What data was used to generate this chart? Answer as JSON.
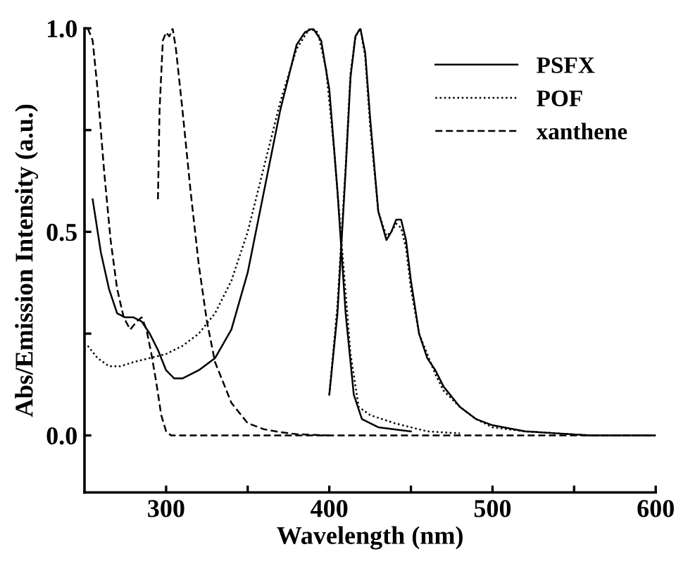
{
  "chart_data": {
    "type": "line",
    "xlabel": "Wavelength (nm)",
    "ylabel": "Abs/Emission Intensity (a.u.)",
    "xlim": [
      250,
      600
    ],
    "ylim": [
      -0.14,
      1.0
    ],
    "xticks": [
      300,
      {
        "value": 350,
        "label": null
      },
      400,
      {
        "value": 450,
        "label": null
      },
      500,
      {
        "value": 550,
        "label": null
      },
      600
    ],
    "yticks": [
      {
        "value": 0,
        "label": "0.0"
      },
      {
        "value": 0.25,
        "label": null
      },
      0.5,
      {
        "value": 0.75,
        "label": null
      },
      {
        "value": 1,
        "label": "1.0"
      }
    ],
    "grid": false,
    "legend": "top right",
    "marker": "none",
    "series": [
      {
        "name": "PSFX",
        "color": "#000000",
        "line_style": "solid",
        "x": [
          255,
          260,
          265,
          270,
          275,
          280,
          285,
          290,
          295,
          300,
          305,
          310,
          320,
          330,
          340,
          350,
          360,
          370,
          380,
          385,
          390,
          395,
          400,
          405,
          410,
          415,
          420,
          430,
          450
        ],
        "values": [
          0.58,
          0.45,
          0.36,
          0.3,
          0.29,
          0.29,
          0.28,
          0.25,
          0.21,
          0.16,
          0.14,
          0.14,
          0.16,
          0.19,
          0.26,
          0.4,
          0.6,
          0.8,
          0.96,
          0.99,
          1.0,
          0.97,
          0.85,
          0.6,
          0.3,
          0.1,
          0.04,
          0.02,
          0.01
        ]
      },
      {
        "color": "#000000",
        "line_style": "solid",
        "x": [
          400,
          405,
          410,
          413,
          416,
          419,
          422,
          425,
          430,
          435,
          438,
          441,
          444,
          447,
          450,
          455,
          460,
          465,
          470,
          480,
          490,
          500,
          520,
          540,
          560,
          600
        ],
        "values": [
          0.1,
          0.3,
          0.65,
          0.88,
          0.98,
          1.0,
          0.94,
          0.78,
          0.55,
          0.48,
          0.5,
          0.53,
          0.53,
          0.48,
          0.38,
          0.25,
          0.19,
          0.16,
          0.12,
          0.07,
          0.04,
          0.025,
          0.01,
          0.005,
          0.0,
          0.0
        ]
      },
      {
        "name": "POF",
        "color": "#000000",
        "line_style": "dotted",
        "x": [
          252,
          258,
          265,
          272,
          280,
          290,
          300,
          310,
          320,
          330,
          340,
          350,
          360,
          370,
          380,
          388,
          393,
          398,
          403,
          408,
          413,
          418,
          425,
          440,
          460,
          480
        ],
        "values": [
          0.22,
          0.19,
          0.17,
          0.17,
          0.18,
          0.19,
          0.2,
          0.22,
          0.25,
          0.3,
          0.38,
          0.5,
          0.66,
          0.82,
          0.95,
          1.0,
          0.99,
          0.9,
          0.7,
          0.45,
          0.2,
          0.07,
          0.05,
          0.03,
          0.01,
          0.005
        ]
      },
      {
        "color": "#000000",
        "line_style": "dotted",
        "x": [
          400,
          405,
          410,
          413,
          416,
          419,
          422,
          425,
          430,
          435,
          438,
          441,
          444,
          447,
          450,
          455,
          460,
          465,
          470,
          480,
          490,
          500,
          520,
          540,
          560,
          600
        ],
        "values": [
          0.1,
          0.32,
          0.66,
          0.89,
          0.98,
          1.0,
          0.93,
          0.76,
          0.55,
          0.49,
          0.5,
          0.52,
          0.51,
          0.46,
          0.36,
          0.25,
          0.2,
          0.15,
          0.11,
          0.07,
          0.04,
          0.02,
          0.01,
          0.005,
          0.0,
          0.0
        ]
      },
      {
        "name": "xanthene",
        "color": "#000000",
        "line_style": "dashed",
        "x": [
          252,
          255,
          258,
          262,
          266,
          270,
          274,
          278,
          282,
          285,
          288,
          291,
          294,
          297,
          300,
          303,
          310,
          330,
          400,
          500,
          600
        ],
        "values": [
          1.0,
          0.97,
          0.85,
          0.65,
          0.48,
          0.36,
          0.29,
          0.26,
          0.28,
          0.29,
          0.26,
          0.2,
          0.13,
          0.05,
          0.01,
          0.0,
          0.0,
          0.0,
          0.0,
          0.0,
          0.0
        ]
      },
      {
        "color": "#000000",
        "line_style": "dashed",
        "x": [
          295,
          296,
          298,
          300,
          302,
          304,
          306,
          310,
          315,
          320,
          325,
          330,
          340,
          350,
          360,
          370,
          380,
          400
        ],
        "values": [
          0.58,
          0.8,
          0.97,
          0.99,
          0.98,
          1.0,
          0.95,
          0.8,
          0.6,
          0.42,
          0.28,
          0.18,
          0.08,
          0.03,
          0.015,
          0.008,
          0.003,
          0.0
        ]
      }
    ]
  }
}
